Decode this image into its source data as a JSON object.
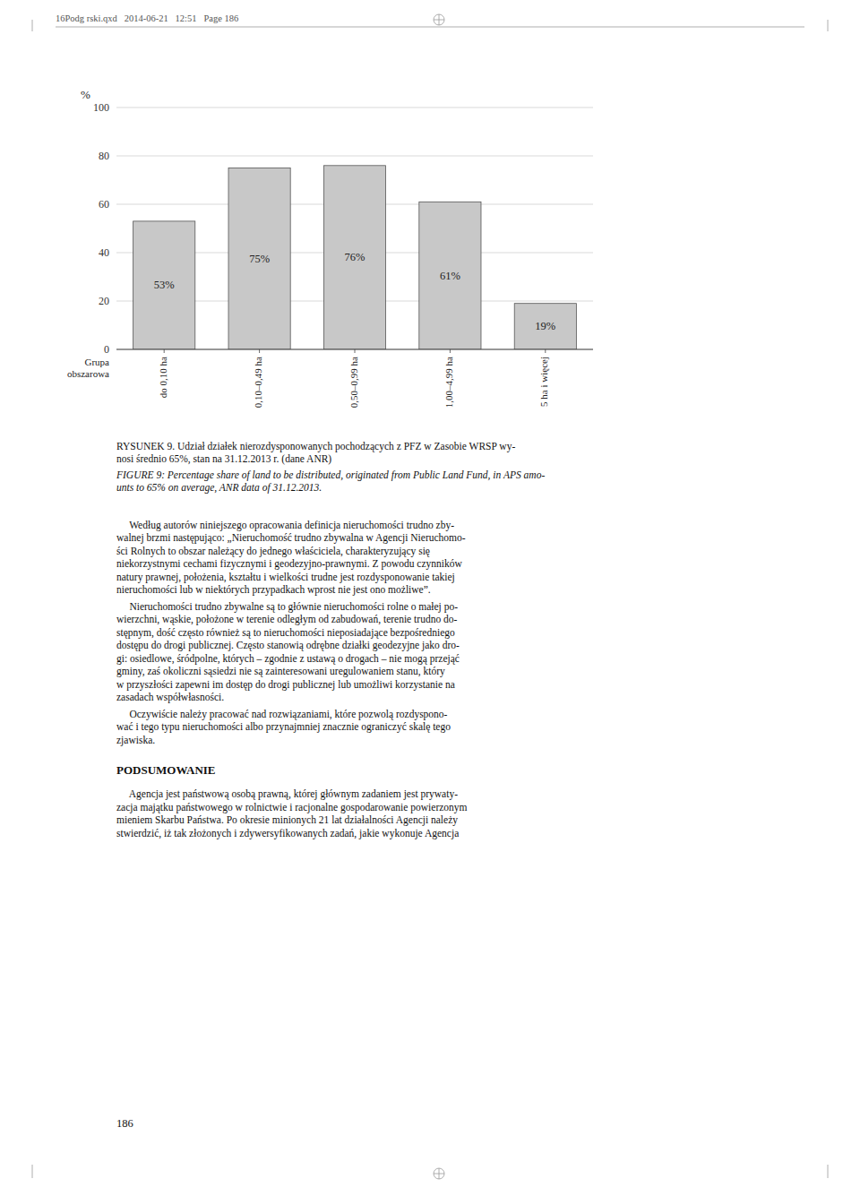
{
  "chart_data": {
    "type": "bar",
    "categories": [
      "do 0,10 ha",
      "0,10–0,49 ha",
      "0,50–0,99 ha",
      "1,00–4,99 ha",
      "5 ha i więcej"
    ],
    "values": [
      53,
      75,
      76,
      61,
      19
    ],
    "value_labels": [
      "53%",
      "75%",
      "76%",
      "61%",
      "19%"
    ],
    "data_labels": true,
    "color": "#c8c8c8",
    "x_label": "Grupa\nobszarowa",
    "y_label": "%",
    "ylim": [
      0,
      100
    ],
    "yticks": [
      0,
      20,
      40,
      60,
      80,
      100
    ],
    "grid": true
  },
  "header_text": "16Podg rski.qxd   2014-06-21   12:51   Page 186",
  "caption_pl": [
    "RYSUNEK 9. Udział działek nierozdysponowanych pochodzących z PFZ w Zasobie WRSP wy-",
    "nosi średnio 65%, stan na 31.12.2013 r. (dane ANR)"
  ],
  "caption_en": [
    "FIGURE 9: Percentage share of land to be distributed, originated from Public Land Fund, in APS amo-",
    "unts to 65% on average, ANR data of 31.12.2013."
  ],
  "paragraphs": [
    [
      "     Według autorów niniejszego opracowania definicja nieruchomości trudno zby-",
      "walnej brzmi następująco: „Nieruchomość trudno zbywalna w Agencji Nieruchomo-",
      "ści Rolnych to obszar należący do jednego właściciela, charakteryzujący się",
      "niekorzystnymi cechami fizycznymi i geodezyjno-prawnymi. Z powodu czynników",
      "natury prawnej, położenia, kształtu i wielkości trudne jest rozdysponowanie takiej",
      "nieruchomości lub w niektórych przypadkach wprost nie jest ono możliwe”."
    ],
    [
      "     Nieruchomości trudno zbywalne są to głównie nieruchomości rolne o małej po-",
      "wierzchni, wąskie, położone w terenie odległym od zabudowań, terenie trudno do-",
      "stępnym, dość często również są to nieruchomości nieposiadające bezpośredniego",
      "dostępu do drogi publicznej. Często stanowią odrębne działki geodezyjne jako dro-",
      "gi: osiedlowe, śródpolne, których – zgodnie z ustawą o drogach – nie mogą przejąć",
      "gminy, zaś okoliczni sąsiedzi nie są zainteresowani uregulowaniem stanu, który",
      "w przyszłości zapewni im dostęp do drogi publicznej lub umożliwi korzystanie na",
      "zasadach współwłasności."
    ],
    [
      "     Oczywiście należy pracować nad rozwiązaniami, które pozwolą rozdyspono-",
      "wać i tego typu nieruchomości albo przynajmniej znacznie ograniczyć skalę tego",
      "zjawiska."
    ]
  ],
  "section_heading": "PODSUMOWANIE",
  "summary_lines": [
    "     Agencja jest państwową osobą prawną, której głównym zadaniem jest prywaty-",
    "zacja majątku państwowego w rolnictwie i racjonalne gospodarowanie powierzonym",
    "mieniem Skarbu Państwa. Po okresie minionych 21 lat działalności Agencji należy",
    "stwierdzić, iż tak złożonych i zdywersyfikowanych zadań, jakie wykonuje Agencja"
  ],
  "page_number": "186"
}
